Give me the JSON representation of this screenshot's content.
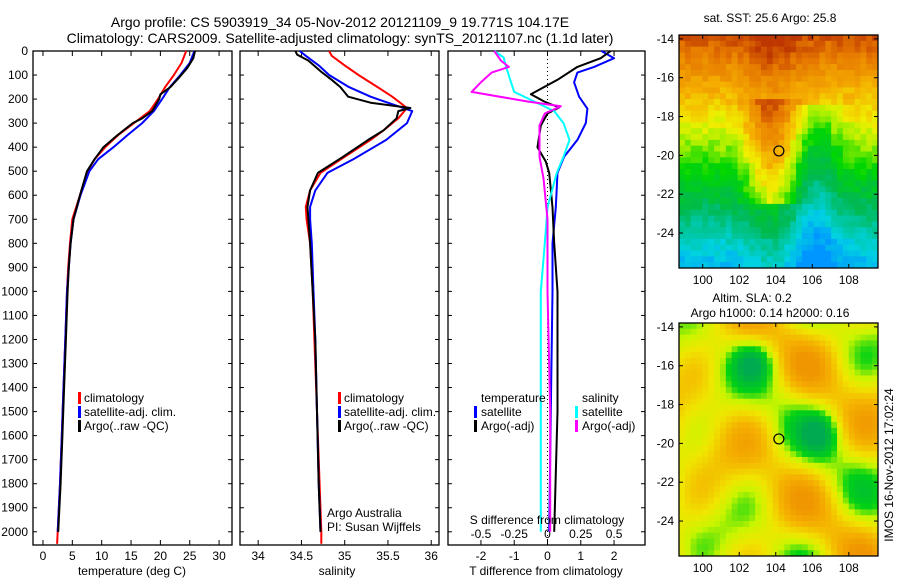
{
  "title": {
    "line1": "Argo profile: CS 5903919_34 05-Nov-2012 20121109_9 19.771S 104.17E",
    "line2": "Climatology: CARS2009. Satellite-adjusted climatology: synTS_20121107.nc (1.1d later)"
  },
  "colors": {
    "climatology": "#ff0000",
    "satellite": "#0000ff",
    "argo": "#000000",
    "sal_satellite": "#00ffff",
    "sal_argo": "#ff00ff"
  },
  "chart_data": [
    {
      "type": "line",
      "id": "temperature",
      "xlabel": "temperature (deg C)",
      "ylabel": "",
      "xlim": [
        -1.7,
        32.2
      ],
      "ylim": [
        2055,
        0
      ],
      "xticks": [
        "0",
        "5",
        "10",
        "15",
        "20",
        "25",
        "30"
      ],
      "yticks": [
        "0",
        "100",
        "200",
        "300",
        "400",
        "500",
        "600",
        "700",
        "800",
        "900",
        "1000",
        "1100",
        "1200",
        "1300",
        "1400",
        "1500",
        "1600",
        "1700",
        "1800",
        "1900",
        "2000"
      ],
      "legend": [
        "climatology",
        "satellite-adj. clim.",
        "Argo(..raw -QC)"
      ],
      "series": [
        {
          "name": "climatology",
          "color": "#ff0000",
          "depth": [
            0,
            50,
            100,
            150,
            200,
            250,
            300,
            350,
            400,
            450,
            500,
            600,
            700,
            800,
            900,
            1000,
            1200,
            1400,
            1600,
            1800,
            2000,
            2050
          ],
          "values": [
            24.4,
            23.6,
            22.3,
            20.8,
            19.6,
            18.2,
            15.5,
            12.8,
            10.6,
            8.8,
            7.6,
            6.3,
            5.0,
            4.6,
            4.3,
            4.1,
            3.8,
            3.5,
            3.2,
            2.9,
            2.5,
            2.4
          ]
        },
        {
          "name": "satellite-adj. clim.",
          "color": "#0000ff",
          "depth": [
            0,
            50,
            100,
            150,
            200,
            250,
            300,
            350,
            400,
            450,
            500,
            600,
            700,
            800,
            900,
            1000,
            1200,
            1400,
            1600,
            1800,
            2000
          ],
          "values": [
            25.8,
            25.0,
            23.4,
            21.6,
            20.3,
            18.9,
            16.9,
            14.4,
            12.0,
            9.4,
            7.9,
            6.4,
            5.2,
            4.7,
            4.4,
            4.1,
            3.8,
            3.5,
            3.2,
            2.9,
            2.5
          ]
        },
        {
          "name": "Argo(..raw -QC)",
          "color": "#000000",
          "depth": [
            0,
            30,
            70,
            110,
            150,
            180,
            200,
            250,
            280,
            300,
            350,
            400,
            450,
            500,
            600,
            700,
            800,
            900,
            1000,
            1200,
            1400,
            1600,
            1800,
            2000
          ],
          "values": [
            25.9,
            25.6,
            24.6,
            23.2,
            21.7,
            20.0,
            19.8,
            18.6,
            16.9,
            15.3,
            12.7,
            10.3,
            8.8,
            7.5,
            6.3,
            5.2,
            4.7,
            4.4,
            4.2,
            3.9,
            3.6,
            3.3,
            3.0,
            2.6
          ]
        }
      ]
    },
    {
      "type": "line",
      "id": "salinity",
      "xlabel": "salinity",
      "ylabel": "",
      "xlim": [
        33.79,
        36.09
      ],
      "ylim": [
        2055,
        0
      ],
      "xticks": [
        "34",
        "34.5",
        "35",
        "35.5",
        "36"
      ],
      "legend": [
        "climatology",
        "satellite-adj. clim.",
        "Argo(..raw -QC)"
      ],
      "annotation": [
        "Argo Australia",
        "PI: Susan Wijffels"
      ],
      "series": [
        {
          "name": "climatology",
          "color": "#ff0000",
          "depth": [
            0,
            20,
            60,
            100,
            150,
            190,
            237,
            280,
            330,
            370,
            440,
            507,
            580,
            648,
            700,
            800,
            1000,
            1200,
            1500,
            1800,
            2000,
            2050
          ],
          "values": [
            34.82,
            34.85,
            35.0,
            35.16,
            35.38,
            35.55,
            35.72,
            35.62,
            35.45,
            35.3,
            35.0,
            34.72,
            34.6,
            34.55,
            34.56,
            34.6,
            34.63,
            34.65,
            34.68,
            34.71,
            34.73,
            34.73
          ]
        },
        {
          "name": "satellite-adj. clim.",
          "color": "#0000ff",
          "depth": [
            0,
            20,
            60,
            100,
            150,
            190,
            250,
            300,
            370,
            450,
            507,
            580,
            648,
            700,
            800,
            1000,
            1200,
            1500,
            1800,
            2000
          ],
          "values": [
            34.48,
            34.55,
            34.7,
            34.82,
            35.05,
            35.3,
            35.78,
            35.72,
            35.48,
            35.1,
            34.8,
            34.66,
            34.6,
            34.6,
            34.62,
            34.64,
            34.66,
            34.68,
            34.7,
            34.72
          ]
        },
        {
          "name": "Argo(..raw -QC)",
          "color": "#000000",
          "depth": [
            0,
            15,
            40,
            90,
            120,
            150,
            190,
            215,
            237,
            250,
            280,
            330,
            370,
            440,
            507,
            580,
            648,
            700,
            800,
            1000,
            1200,
            1500,
            1800,
            2000
          ],
          "values": [
            34.43,
            34.45,
            34.58,
            34.74,
            34.85,
            34.95,
            35.04,
            35.3,
            35.76,
            35.62,
            35.6,
            35.45,
            35.27,
            34.98,
            34.69,
            34.6,
            34.57,
            34.58,
            34.6,
            34.63,
            34.66,
            34.68,
            34.7,
            34.72
          ]
        }
      ]
    },
    {
      "type": "line",
      "id": "difference",
      "xlabel": "T difference from climatology",
      "xlabel_secondary": "S difference from climatology",
      "xlim": [
        -2.99,
        2.93
      ],
      "ylim": [
        2055,
        0
      ],
      "xticks": [
        "-2",
        "-1",
        "0",
        "1",
        "2"
      ],
      "xticks_secondary": [
        "-0.5",
        "-0.25",
        "0",
        "0.25",
        "0.5"
      ],
      "secondary_scale": 0.25,
      "legend": {
        "temperature_title": "temperature",
        "salinity_title": "salinity",
        "satellite": "satellite",
        "argo": "Argo(-adj)"
      },
      "series": [
        {
          "name": "T satellite",
          "color": "#0000ff",
          "unit": "T",
          "depth": [
            0,
            30,
            66,
            90,
            130,
            190,
            240,
            300,
            370,
            440,
            507,
            650,
            800,
            1000,
            1500,
            2000
          ],
          "values": [
            1.62,
            2.0,
            1.4,
            0.9,
            0.8,
            0.95,
            1.2,
            1.15,
            0.9,
            0.5,
            0.3,
            0.25,
            0.15,
            0.15,
            0.1,
            0.05
          ]
        },
        {
          "name": "T Argo(-adj)",
          "color": "#000000",
          "unit": "T",
          "depth": [
            0,
            30,
            66,
            120,
            180,
            210,
            235,
            260,
            310,
            400,
            460,
            507,
            650,
            800,
            1000,
            1500,
            2000
          ],
          "values": [
            1.9,
            1.6,
            0.9,
            0.3,
            -0.5,
            -0.1,
            0.35,
            0.0,
            -0.2,
            -0.3,
            -0.05,
            0.05,
            0.15,
            0.2,
            0.3,
            0.3,
            0.2
          ]
        },
        {
          "name": "S satellite",
          "color": "#00ffff",
          "unit": "S",
          "depth": [
            0,
            27,
            66,
            120,
            170,
            210,
            250,
            300,
            370,
            440,
            507,
            650,
            800,
            1000,
            1500,
            2000
          ],
          "values": [
            -0.4,
            -0.33,
            -0.31,
            -0.28,
            -0.25,
            -0.1,
            0.05,
            0.12,
            0.165,
            0.12,
            0.07,
            0.0,
            -0.02,
            -0.05,
            -0.05,
            -0.05
          ]
        },
        {
          "name": "S Argo(-adj)",
          "color": "#ff00ff",
          "unit": "S",
          "depth": [
            0,
            40,
            66,
            90,
            130,
            170,
            210,
            230,
            260,
            310,
            440,
            530,
            700,
            1000,
            1500,
            2000
          ],
          "values": [
            -0.4,
            -0.35,
            -0.29,
            -0.42,
            -0.5,
            -0.57,
            -0.15,
            0.1,
            -0.02,
            -0.06,
            -0.06,
            -0.03,
            0.0,
            0.0,
            0.02,
            0.02
          ]
        }
      ]
    }
  ],
  "maps": [
    {
      "id": "sst",
      "title": "sat. SST: 25.6 Argo: 25.8",
      "lon_ticks": [
        "100",
        "102",
        "104",
        "106",
        "108"
      ],
      "lat_ticks": [
        "-14",
        "-16",
        "-18",
        "-20",
        "-22",
        "-24"
      ],
      "lon_range": [
        98.7,
        109.6
      ],
      "lat_range": [
        -13.8,
        -25.8
      ],
      "marker": {
        "lon": 104.17,
        "lat": -19.77
      }
    },
    {
      "id": "sla",
      "title": "Altim. SLA: 0.2",
      "subtitle": "Argo h1000: 0.14 h2000: 0.16",
      "lon_ticks": [
        "100",
        "102",
        "104",
        "106",
        "108"
      ],
      "lat_ticks": [
        "-14",
        "-16",
        "-18",
        "-20",
        "-22",
        "-24"
      ],
      "lon_range": [
        98.7,
        109.6
      ],
      "lat_range": [
        -13.8,
        -25.8
      ],
      "marker": {
        "lon": 104.17,
        "lat": -19.77
      }
    }
  ],
  "watermark": "IMOS 16-Nov-2012 17:02:24"
}
